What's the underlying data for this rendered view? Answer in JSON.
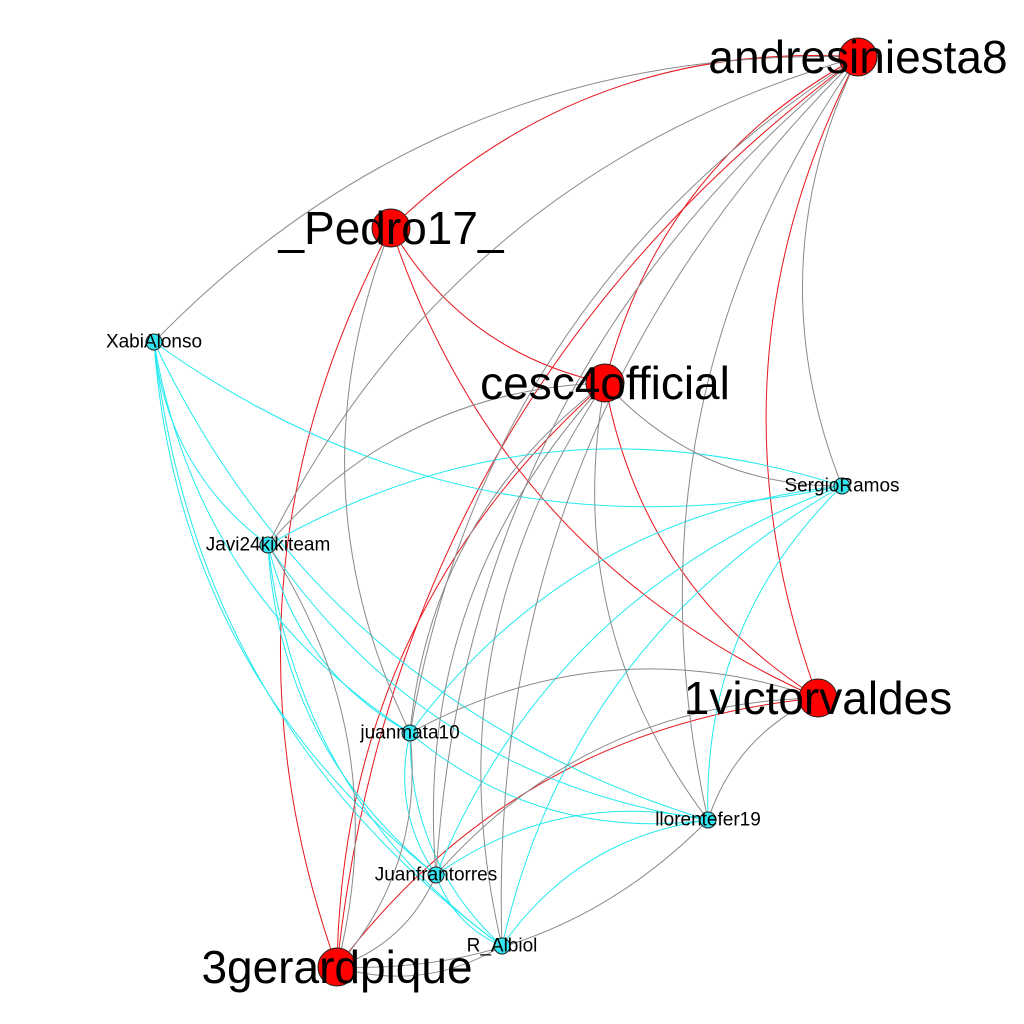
{
  "graph": {
    "colors": {
      "big_node": "#ff0000",
      "small_node": "#33e5f0",
      "node_stroke": "#222222",
      "edge_red": "#e8141b",
      "edge_gray": "#8a8a8a",
      "edge_cyan": "#22eaf0"
    },
    "nodes": [
      {
        "id": "andresiniesta8",
        "label": "andresiniesta8",
        "group": "big"
      },
      {
        "id": "_Pedro17_",
        "label": "_Pedro17_",
        "group": "big"
      },
      {
        "id": "cesc4official",
        "label": "cesc4official",
        "group": "big"
      },
      {
        "id": "1victorvaldes",
        "label": "1victorvaldes",
        "group": "big"
      },
      {
        "id": "3gerardpique",
        "label": "3gerardpique",
        "group": "big"
      },
      {
        "id": "XabiAlonso",
        "label": "XabiAlonso",
        "group": "small"
      },
      {
        "id": "SergioRamos",
        "label": "SergioRamos",
        "group": "small"
      },
      {
        "id": "Javi24kikiteam",
        "label": "Javi24kikiteam",
        "group": "small"
      },
      {
        "id": "juanmata10",
        "label": "juanmata10",
        "group": "small"
      },
      {
        "id": "llorentefer19",
        "label": "llorentefer19",
        "group": "small"
      },
      {
        "id": "Juanfrantorres",
        "label": "Juanfrantorres",
        "group": "small"
      },
      {
        "id": "R_Albiol",
        "label": "R_Albiol",
        "group": "small"
      }
    ]
  }
}
